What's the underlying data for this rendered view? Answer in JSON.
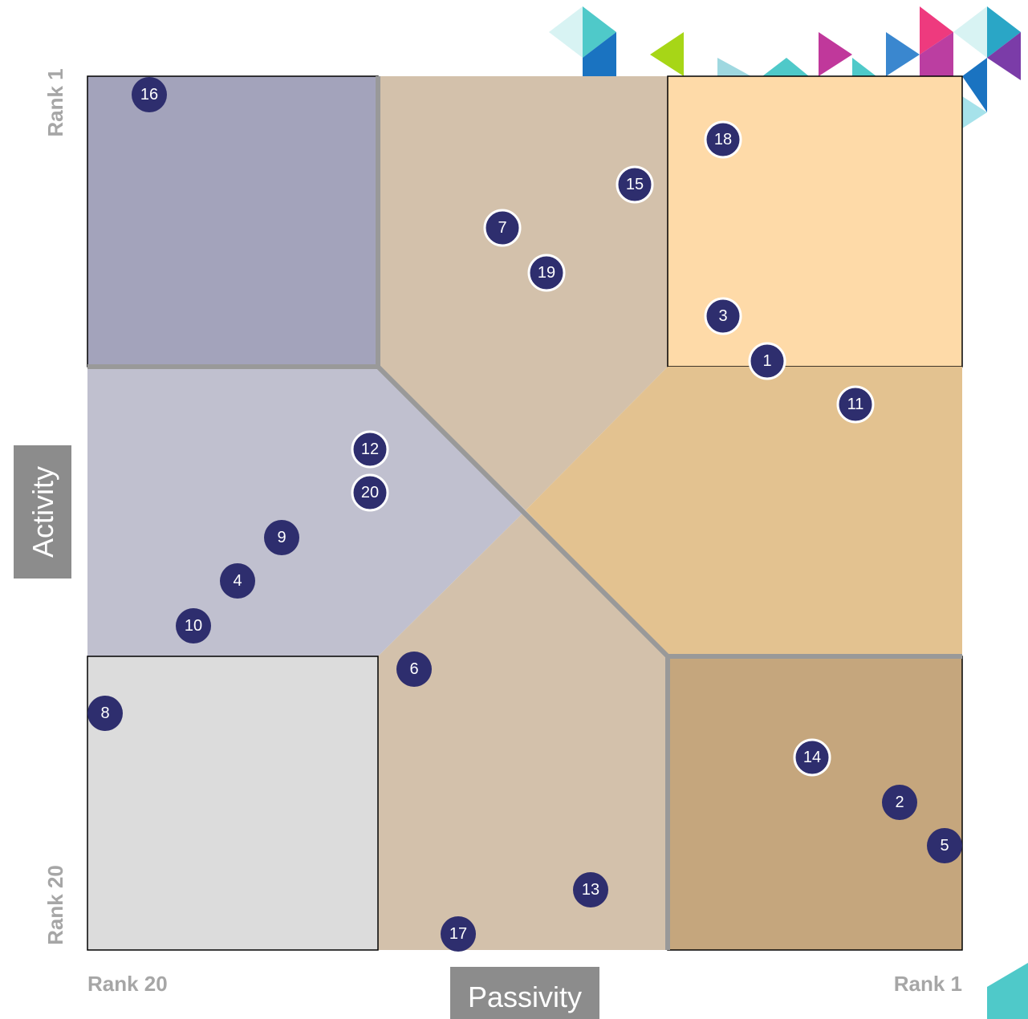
{
  "axes": {
    "y_top": "Rank 1",
    "y_bottom": "Rank 20",
    "y_title": "Activity",
    "x_left": "Rank 20",
    "x_right": "Rank 1",
    "x_title": "Passivity"
  },
  "nodes": [
    {
      "label": "16"
    },
    {
      "label": "18"
    },
    {
      "label": "15"
    },
    {
      "label": "7"
    },
    {
      "label": "19"
    },
    {
      "label": "3"
    },
    {
      "label": "1"
    },
    {
      "label": "11"
    },
    {
      "label": "12"
    },
    {
      "label": "20"
    },
    {
      "label": "9"
    },
    {
      "label": "4"
    },
    {
      "label": "10"
    },
    {
      "label": "6"
    },
    {
      "label": "8"
    },
    {
      "label": "14"
    },
    {
      "label": "2"
    },
    {
      "label": "5"
    },
    {
      "label": "13"
    },
    {
      "label": "17"
    }
  ]
}
